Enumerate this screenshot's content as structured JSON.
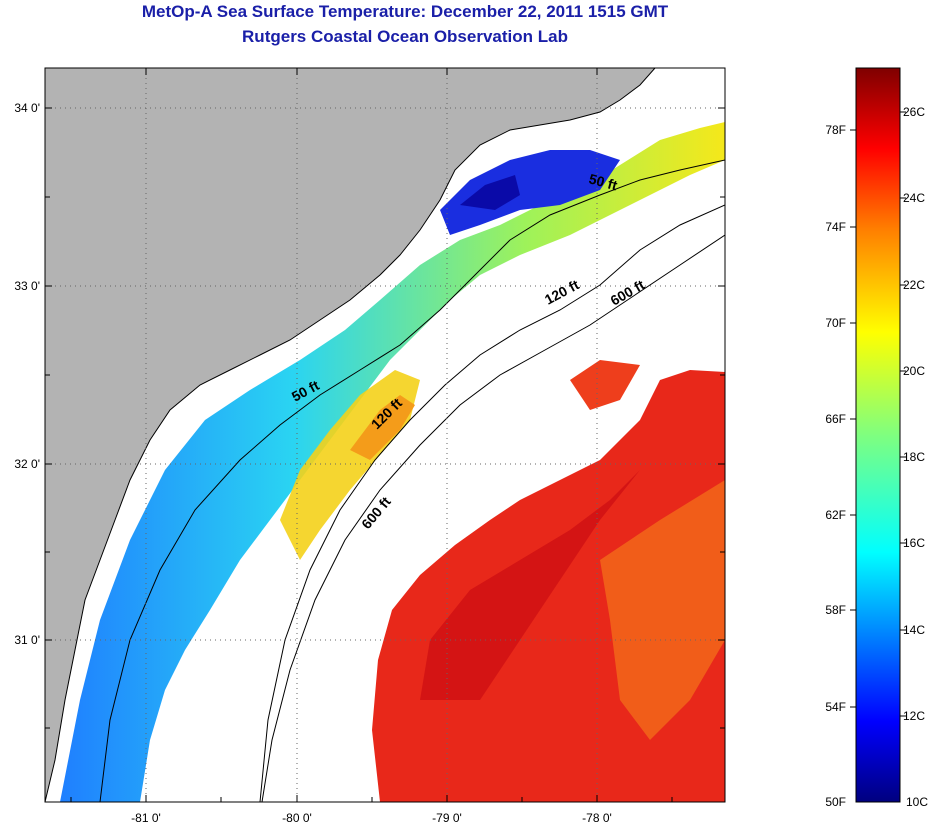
{
  "title": {
    "line1": "MetOp-A Sea Surface Temperature:  December 22, 2011 1515 GMT",
    "line2": "Rutgers Coastal Ocean Observation Lab"
  },
  "map": {
    "latitude_labels": [
      "34 0'",
      "33 0'",
      "32 0'",
      "31 0'"
    ],
    "longitude_labels": [
      "-81 0'",
      "-80 0'",
      "-79 0'",
      "-78 0'"
    ],
    "contour_labels": [
      "50 ft",
      "50 ft",
      "120 ft",
      "120 ft",
      "600 ft",
      "600 ft"
    ],
    "colors": {
      "land": "#b3b3b3",
      "no_data": "#ffffff",
      "frame": "#000000"
    }
  },
  "colorbar": {
    "fahrenheit_labels": [
      "78F",
      "74F",
      "70F",
      "66F",
      "62F",
      "58F",
      "54F",
      "50F"
    ],
    "celsius_labels": [
      "26C",
      "24C",
      "22C",
      "20C",
      "18C",
      "16C",
      "14C",
      "12C",
      "10C"
    ],
    "range_celsius": [
      10,
      27
    ],
    "colormap": "jet"
  }
}
